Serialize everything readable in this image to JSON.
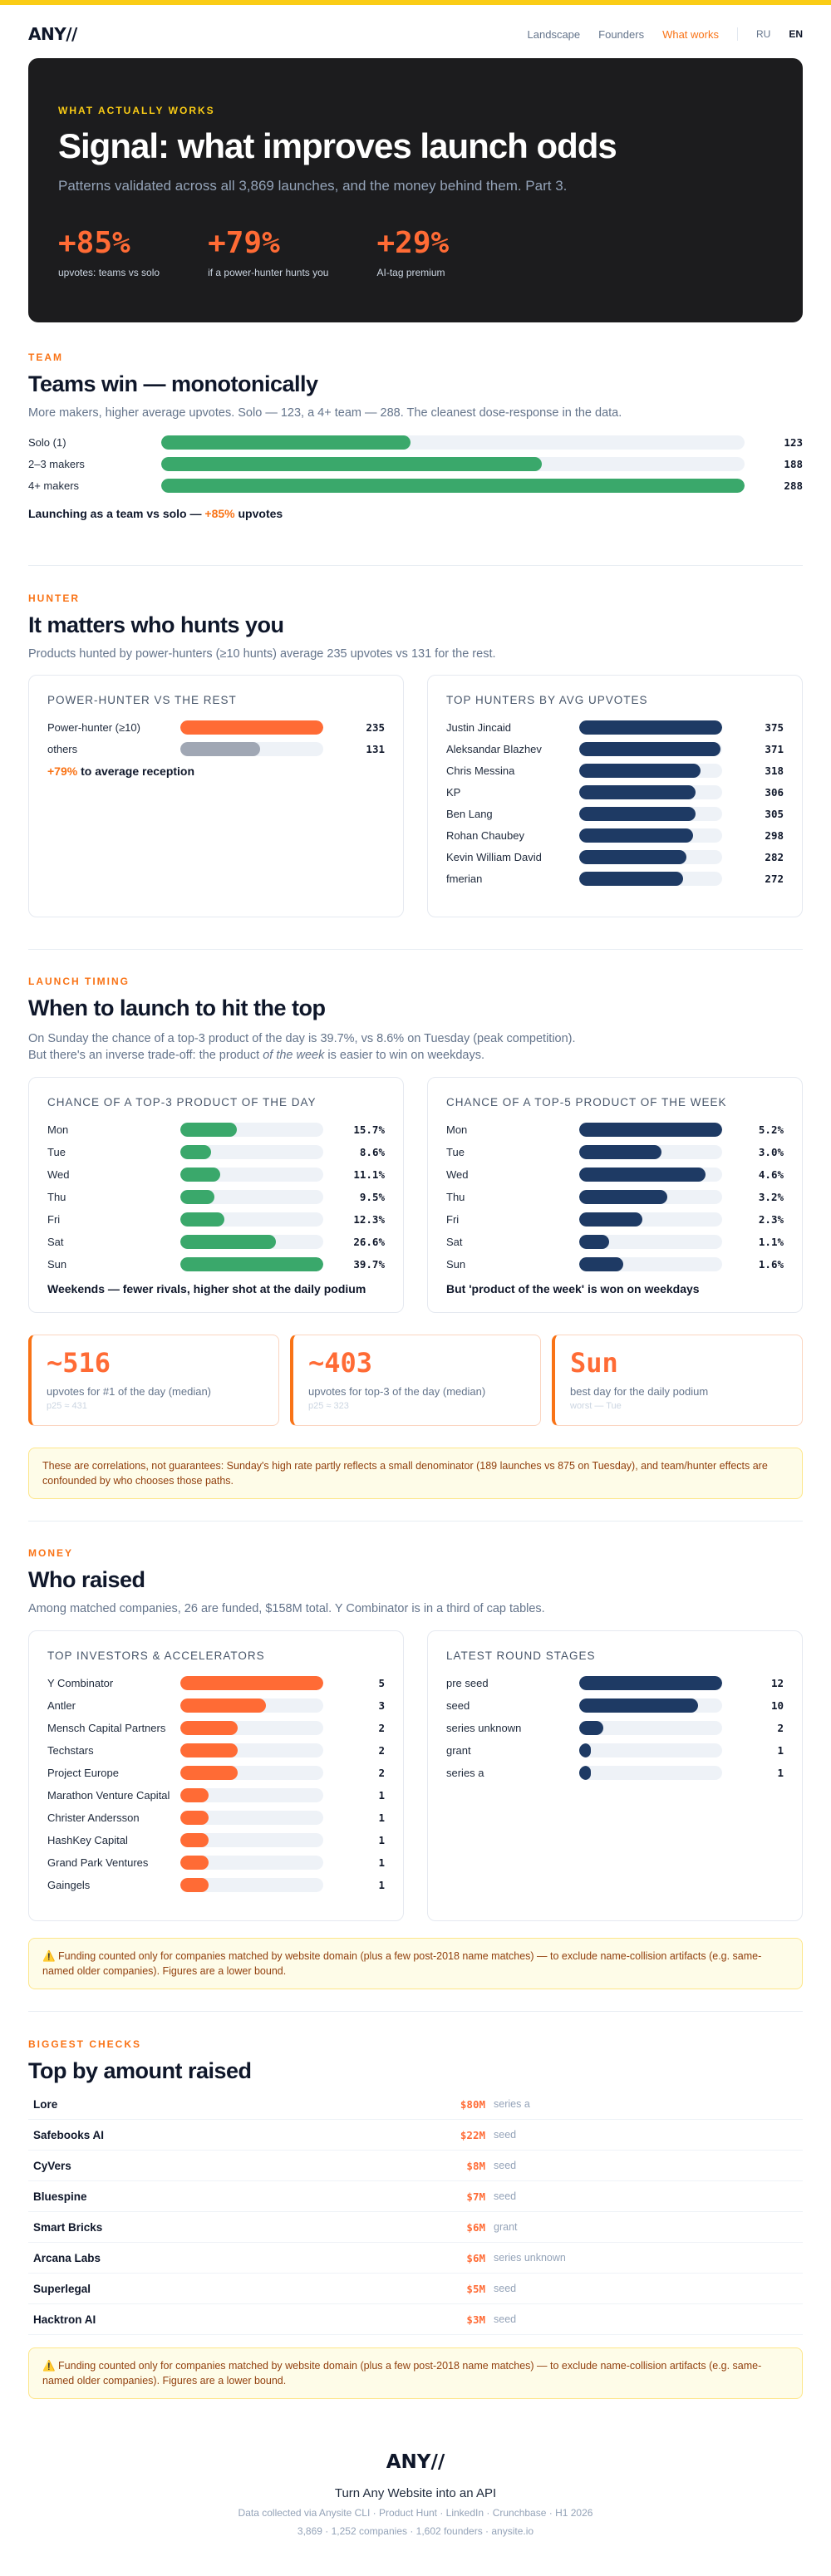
{
  "nav": {
    "logo": "ANY//",
    "links": [
      "Landscape",
      "Founders",
      "What works"
    ],
    "langs": [
      "RU",
      "EN"
    ]
  },
  "hero": {
    "eyebrow": "WHAT ACTUALLY WORKS",
    "title": "Signal: what improves launch odds",
    "subtitle": "Patterns validated across all 3,869 launches, and the money behind them. Part 3.",
    "stats": [
      {
        "num": "+85%",
        "label": "upvotes: teams vs solo"
      },
      {
        "num": "+79%",
        "label": "if a power-hunter hunts you"
      },
      {
        "num": "+29%",
        "label": "AI-tag premium"
      }
    ]
  },
  "team": {
    "eyebrow": "TEAM",
    "title": "Teams win — monotonically",
    "desc": "More makers, higher average upvotes. Solo — 123, a 4+ team — 288. The cleanest dose-response in the data.",
    "rows": [
      {
        "label": "Solo (1)",
        "value": 123
      },
      {
        "label": "2–3 makers",
        "value": 188
      },
      {
        "label": "4+ makers",
        "value": 288
      }
    ],
    "note_pre": "Launching as a team vs solo — ",
    "note_accent": "+85%",
    "note_post": " upvotes"
  },
  "hunter": {
    "eyebrow": "HUNTER",
    "title": "It matters who hunts you",
    "desc": "Products hunted by power-hunters (≥10 hunts) average 235 upvotes vs 131 for the rest.",
    "left_title": "POWER-HUNTER VS THE REST",
    "left_rows": [
      {
        "label": "Power-hunter (≥10)",
        "value": 235
      },
      {
        "label": "others",
        "value": 131
      }
    ],
    "left_note_accent": "+79%",
    "left_note": " to average reception",
    "right_title": "TOP HUNTERS BY AVG UPVOTES",
    "right_rows": [
      {
        "label": "Justin Jincaid",
        "value": 375
      },
      {
        "label": "Aleksandar Blazhev",
        "value": 371
      },
      {
        "label": "Chris Messina",
        "value": 318
      },
      {
        "label": "KP",
        "value": 306
      },
      {
        "label": "Ben Lang",
        "value": 305
      },
      {
        "label": "Rohan Chaubey",
        "value": 298
      },
      {
        "label": "Kevin William David",
        "value": 282
      },
      {
        "label": "fmerian",
        "value": 272
      }
    ]
  },
  "timing": {
    "eyebrow": "LAUNCH TIMING",
    "title": "When to launch to hit the top",
    "desc1": "On Sunday the chance of a top-3 product of the day is 39.7%, vs 8.6% on Tuesday (peak competition).",
    "desc2_pre": "But there's an inverse trade-off: the product ",
    "desc2_em": "of the week",
    "desc2_post": " is easier to win on weekdays.",
    "left_title": "CHANCE OF A TOP-3 PRODUCT OF THE DAY",
    "left_rows": [
      {
        "label": "Mon",
        "value": 15.7,
        "text": "15.7%"
      },
      {
        "label": "Tue",
        "value": 8.6,
        "text": "8.6%"
      },
      {
        "label": "Wed",
        "value": 11.1,
        "text": "11.1%"
      },
      {
        "label": "Thu",
        "value": 9.5,
        "text": "9.5%"
      },
      {
        "label": "Fri",
        "value": 12.3,
        "text": "12.3%"
      },
      {
        "label": "Sat",
        "value": 26.6,
        "text": "26.6%"
      },
      {
        "label": "Sun",
        "value": 39.7,
        "text": "39.7%"
      }
    ],
    "left_note": "Weekends — fewer rivals, higher shot at the daily podium",
    "right_title": "CHANCE OF A TOP-5 PRODUCT OF THE WEEK",
    "right_rows": [
      {
        "label": "Mon",
        "value": 5.2,
        "text": "5.2%"
      },
      {
        "label": "Tue",
        "value": 3.0,
        "text": "3.0%"
      },
      {
        "label": "Wed",
        "value": 4.6,
        "text": "4.6%"
      },
      {
        "label": "Thu",
        "value": 3.2,
        "text": "3.2%"
      },
      {
        "label": "Fri",
        "value": 2.3,
        "text": "2.3%"
      },
      {
        "label": "Sat",
        "value": 1.1,
        "text": "1.1%"
      },
      {
        "label": "Sun",
        "value": 1.6,
        "text": "1.6%"
      }
    ],
    "right_note": "But 'product of the week' is won on weekdays",
    "kpis": [
      {
        "num": "~516",
        "label": "upvotes for #1 of the day (median)",
        "sm": "p25 ≈ 431"
      },
      {
        "num": "~403",
        "label": "upvotes for top-3 of the day (median)",
        "sm": "p25 ≈ 323"
      },
      {
        "num": "Sun",
        "label": "best day for the daily podium",
        "sm": "worst — Tue"
      }
    ],
    "warning": "These are correlations, not guarantees: Sunday's high rate partly reflects a small denominator (189 launches vs 875 on Tuesday), and team/hunter effects are confounded by who chooses those paths."
  },
  "money": {
    "eyebrow": "MONEY",
    "title": "Who raised",
    "desc": "Among matched companies, 26 are funded, $158M total. Y Combinator is in a third of cap tables.",
    "left_title": "TOP INVESTORS & ACCELERATORS",
    "left_rows": [
      {
        "label": "Y Combinator",
        "value": 5
      },
      {
        "label": "Antler",
        "value": 3
      },
      {
        "label": "Mensch Capital Partners",
        "value": 2
      },
      {
        "label": "Techstars",
        "value": 2
      },
      {
        "label": "Project Europe",
        "value": 2
      },
      {
        "label": "Marathon Venture Capital",
        "value": 1
      },
      {
        "label": "Christer Andersson",
        "value": 1
      },
      {
        "label": "HashKey Capital",
        "value": 1
      },
      {
        "label": "Grand Park Ventures",
        "value": 1
      },
      {
        "label": "Gaingels",
        "value": 1
      }
    ],
    "right_title": "LATEST ROUND STAGES",
    "right_rows": [
      {
        "label": "pre seed",
        "value": 12
      },
      {
        "label": "seed",
        "value": 10
      },
      {
        "label": "series unknown",
        "value": 2
      },
      {
        "label": "grant",
        "value": 1
      },
      {
        "label": "series a",
        "value": 1
      }
    ],
    "warning": "⚠️ Funding counted only for companies matched by website domain (plus a few post-2018 name matches) — to exclude name-collision artifacts (e.g. same-named older companies). Figures are a lower bound."
  },
  "checks": {
    "eyebrow": "BIGGEST CHECKS",
    "title": "Top by amount raised",
    "rows": [
      {
        "name": "Lore",
        "amount": "$80M",
        "stage": "series a"
      },
      {
        "name": "Safebooks AI",
        "amount": "$22M",
        "stage": "seed"
      },
      {
        "name": "CyVers",
        "amount": "$8M",
        "stage": "seed"
      },
      {
        "name": "Bluespine",
        "amount": "$7M",
        "stage": "seed"
      },
      {
        "name": "Smart Bricks",
        "amount": "$6M",
        "stage": "grant"
      },
      {
        "name": "Arcana Labs",
        "amount": "$6M",
        "stage": "series unknown"
      },
      {
        "name": "Superlegal",
        "amount": "$5M",
        "stage": "seed"
      },
      {
        "name": "Hacktron AI",
        "amount": "$3M",
        "stage": "seed"
      }
    ],
    "warning": "⚠️ Funding counted only for companies matched by website domain (plus a few post-2018 name matches) — to exclude name-collision artifacts (e.g. same-named older companies). Figures are a lower bound."
  },
  "footer": {
    "logo": "ANY//",
    "tagline": "Turn Any Website into an API",
    "meta1": "Data collected via Anysite CLI · Product Hunt · LinkedIn · Crunchbase · H1 2026",
    "meta2": "3,869 · 1,252 companies · 1,602 founders · anysite.io"
  },
  "colors": {
    "accent": "#f97316",
    "green": "#3aa86b",
    "navy": "#1e3a64",
    "orange_bar": "#ff6b35",
    "gray_bar": "#a0a7b4",
    "track": "#eef2f7"
  }
}
